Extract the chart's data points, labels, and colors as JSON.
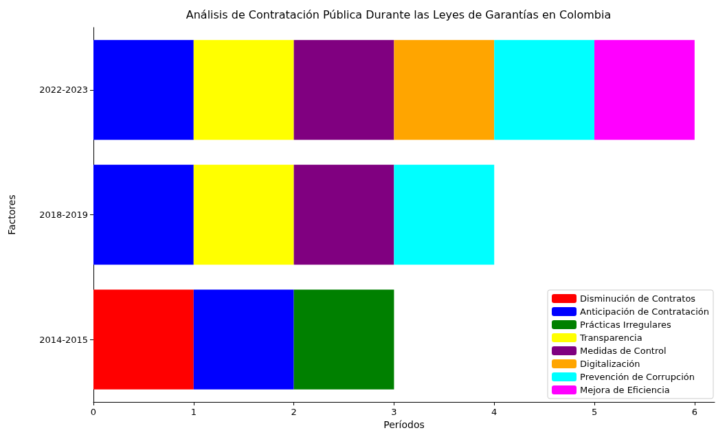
{
  "chart_data": {
    "type": "bar",
    "orientation": "horizontal",
    "stacked": true,
    "title": "Análisis de Contratación Pública Durante las Leyes de Garantías en Colombia",
    "xlabel": "Períodos",
    "ylabel": "Factores",
    "categories": [
      "2022-2023",
      "2018-2019",
      "2014-2015"
    ],
    "series": [
      {
        "name": "Disminución de Contratos",
        "color": "#ff0000",
        "values": [
          null,
          null,
          1
        ]
      },
      {
        "name": "Anticipación de Contratación",
        "color": "#0000ff",
        "values": [
          1,
          1,
          1
        ]
      },
      {
        "name": "Prácticas Irregulares",
        "color": "#008000",
        "values": [
          null,
          null,
          1
        ]
      },
      {
        "name": "Transparencia",
        "color": "#ffff00",
        "values": [
          1,
          1,
          null
        ]
      },
      {
        "name": "Medidas de Control",
        "color": "#800080",
        "values": [
          1,
          1,
          null
        ]
      },
      {
        "name": "Digitalización",
        "color": "#ffa500",
        "values": [
          1,
          null,
          null
        ]
      },
      {
        "name": "Prevención de Corrupción",
        "color": "#00ffff",
        "values": [
          1,
          1,
          null
        ]
      },
      {
        "name": "Mejora de Eficiencia",
        "color": "#ff00ff",
        "values": [
          1,
          null,
          null
        ]
      }
    ],
    "xlim": [
      0,
      6.2
    ],
    "xticks": [
      0,
      1,
      2,
      3,
      4,
      5,
      6
    ],
    "grid": false,
    "legend": "bottom right"
  }
}
